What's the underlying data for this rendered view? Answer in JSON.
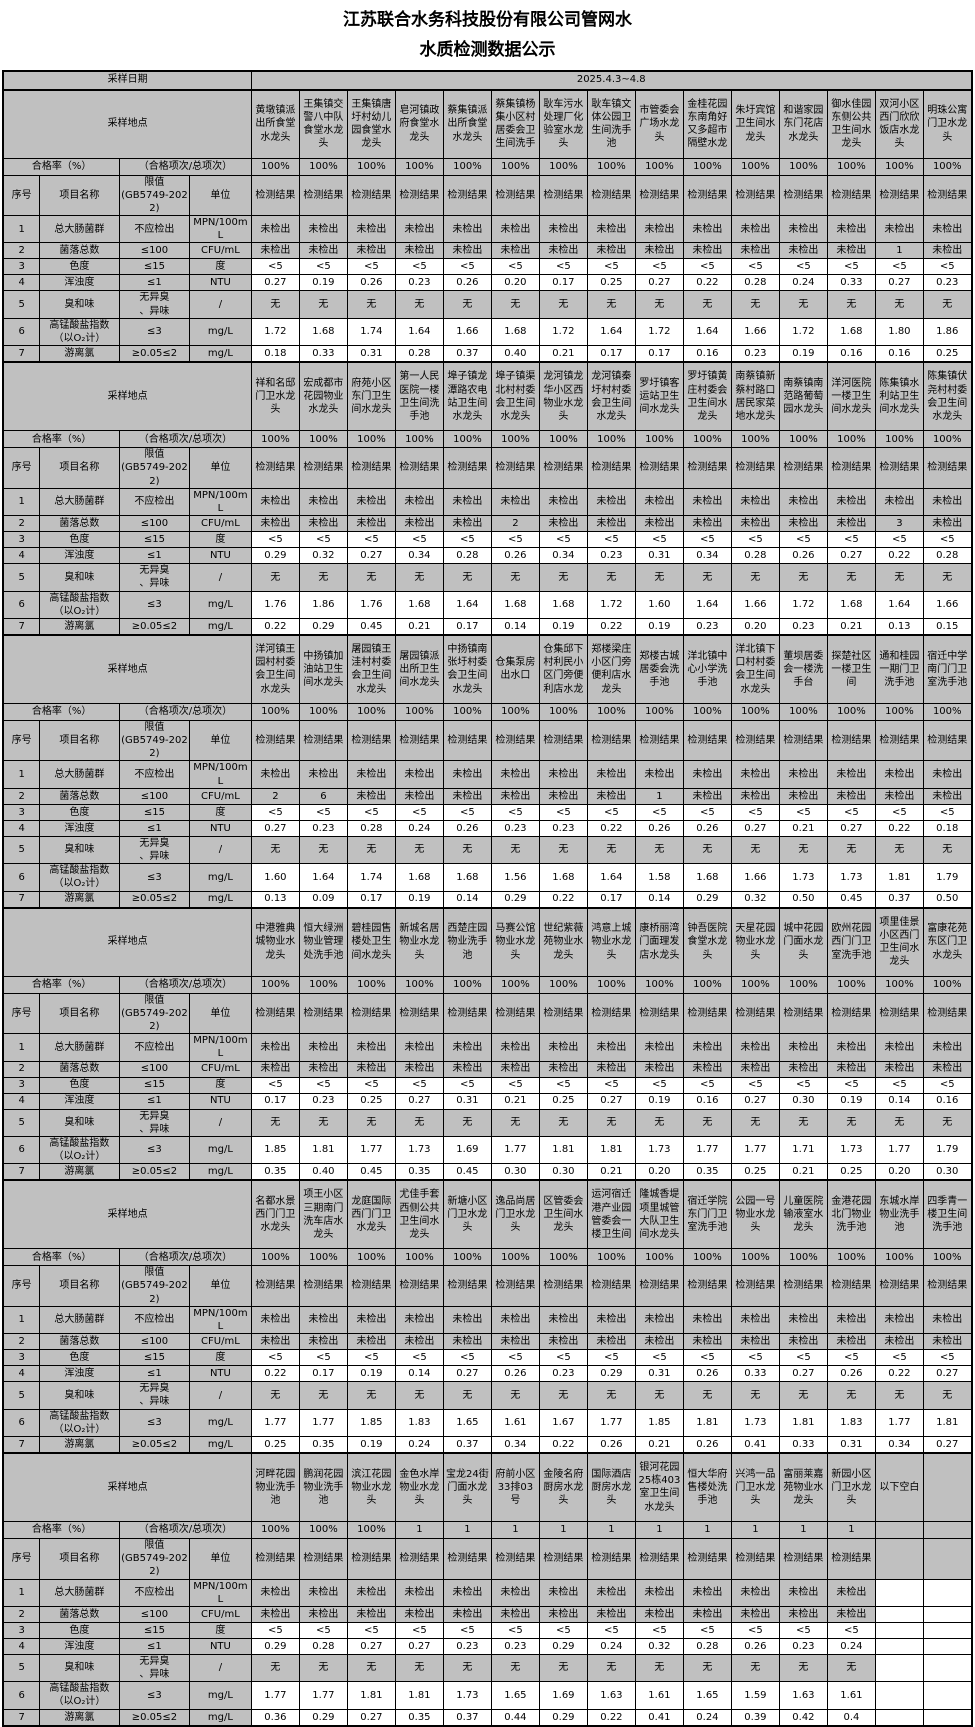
{
  "title": {
    "line1": "江苏联合水务科技股份有限公司管网水",
    "line2": "水质检测数据公示"
  },
  "labels": {
    "date_label": "采样日期",
    "date_value": "2025.4.3~4.8",
    "location_label": "采样地点",
    "rate_label": "合格率（%）",
    "rate_note": "（合格项次/总项次）",
    "col_no": "序号",
    "col_item": "项目名称",
    "col_limit": "限值\n(GB5749-2022)",
    "col_unit": "单位",
    "result_label": "检测结果"
  },
  "items": [
    {
      "no": "1",
      "name": "总大肠菌群",
      "limit": "不应检出",
      "unit": "MPN/100mL",
      "bg": "g"
    },
    {
      "no": "2",
      "name": "菌落总数",
      "limit": "≤100",
      "unit": "CFU/mL",
      "bg": "g"
    },
    {
      "no": "3",
      "name": "色度",
      "limit": "≤15",
      "unit": "度",
      "bg": "w"
    },
    {
      "no": "4",
      "name": "浑浊度",
      "limit": "≤1",
      "unit": "NTU",
      "bg": "w"
    },
    {
      "no": "5",
      "name": "臭和味",
      "limit": "无异臭\n、异味",
      "unit": "/",
      "bg": "g"
    },
    {
      "no": "6",
      "name": "高锰酸盐指数\n（以O₂计）",
      "limit": "≤3",
      "unit": "mg/L",
      "bg": "w"
    },
    {
      "no": "7",
      "name": "游离氯",
      "limit": "≥0.05≤2",
      "unit": "mg/L",
      "bg": "w"
    }
  ],
  "blocks": [
    {
      "locations": [
        "黄墩镇派出所食堂水龙头",
        "王集镇交警八中队食堂水龙头",
        "王集镇唐圩村幼儿园食堂水龙头",
        "皂河镇政府食堂水龙头",
        "蔡集镇派出所食堂水龙头",
        "蔡集镇杨集小区村居委会卫生间洗手",
        "耿车污水处理厂化验室水龙头",
        "耿车镇文体公园卫生间洗手池",
        "市管委会广场水龙头",
        "金桂花园东南角好又多超市隔壁水龙",
        "朱圩宾馆卫生间水龙头",
        "和谐家园东门花店水龙头",
        "御水佳园东侧公共卫生间水龙头",
        "双河小区西门欣欣饭店水龙头",
        "明珠公寓门卫水龙头"
      ],
      "pass_rates": [
        "100%",
        "100%",
        "100%",
        "100%",
        "100%",
        "100%",
        "100%",
        "100%",
        "100%",
        "100%",
        "100%",
        "100%",
        "100%",
        "100%",
        "100%"
      ],
      "result_headers": [
        "检测结果",
        "检测结果",
        "检测结果",
        "检测结果",
        "检测结果",
        "检测结果",
        "检测结果",
        "检测结果",
        "检测结果",
        "检测结果",
        "检测结果",
        "检测结果",
        "检测结果",
        "检测结果",
        "检测结果"
      ],
      "rows": [
        [
          "未检出",
          "未检出",
          "未检出",
          "未检出",
          "未检出",
          "未检出",
          "未检出",
          "未检出",
          "未检出",
          "未检出",
          "未检出",
          "未检出",
          "未检出",
          "未检出",
          "未检出"
        ],
        [
          "未检出",
          "未检出",
          "未检出",
          "未检出",
          "未检出",
          "未检出",
          "未检出",
          "未检出",
          "未检出",
          "未检出",
          "未检出",
          "未检出",
          "未检出",
          "1",
          "未检出"
        ],
        [
          "<5",
          "<5",
          "<5",
          "<5",
          "<5",
          "<5",
          "<5",
          "<5",
          "<5",
          "<5",
          "<5",
          "<5",
          "<5",
          "<5",
          "<5"
        ],
        [
          "0.27",
          "0.19",
          "0.26",
          "0.23",
          "0.26",
          "0.20",
          "0.17",
          "0.25",
          "0.27",
          "0.22",
          "0.28",
          "0.24",
          "0.33",
          "0.27",
          "0.23"
        ],
        [
          "无",
          "无",
          "无",
          "无",
          "无",
          "无",
          "无",
          "无",
          "无",
          "无",
          "无",
          "无",
          "无",
          "无",
          "无"
        ],
        [
          "1.72",
          "1.68",
          "1.74",
          "1.64",
          "1.66",
          "1.68",
          "1.72",
          "1.64",
          "1.72",
          "1.64",
          "1.66",
          "1.72",
          "1.68",
          "1.80",
          "1.86"
        ],
        [
          "0.18",
          "0.33",
          "0.31",
          "0.28",
          "0.37",
          "0.40",
          "0.21",
          "0.17",
          "0.17",
          "0.16",
          "0.23",
          "0.19",
          "0.16",
          "0.16",
          "0.25"
        ]
      ]
    },
    {
      "locations": [
        "祥和名邸门卫水龙头",
        "宏成都市花园物业水龙头",
        "府苑小区东门卫生间水龙头",
        "第一人民医院一楼卫生间洗手池",
        "埠子镇龙潭路农电站卫生间水龙头",
        "埠子镇渠北村村委会卫生间水龙头",
        "龙河镇龙华小区西物业水龙头",
        "龙河镇秦圩村村委会卫生间水龙头",
        "罗圩镇客运站卫生间水龙头",
        "罗圩镇黄庄村委会卫生间水龙头",
        "南蔡镇新蔡村路口居民家菜地水龙头",
        "南蔡镇南范路葡萄园水龙头",
        "洋河医院一楼卫生间水龙头",
        "陈集镇水利站卫生间水龙头",
        "陈集镇伏尧村村委会卫生间水龙头"
      ],
      "pass_rates": [
        "100%",
        "100%",
        "100%",
        "100%",
        "100%",
        "100%",
        "100%",
        "100%",
        "100%",
        "100%",
        "100%",
        "100%",
        "100%",
        "100%",
        "100%"
      ],
      "result_headers": [
        "检测结果",
        "检测结果",
        "检测结果",
        "检测结果",
        "检测结果",
        "检测结果",
        "检测结果",
        "检测结果",
        "检测结果",
        "检测结果",
        "检测结果",
        "检测结果",
        "检测结果",
        "检测结果",
        "检测结果"
      ],
      "rows": [
        [
          "未检出",
          "未检出",
          "未检出",
          "未检出",
          "未检出",
          "未检出",
          "未检出",
          "未检出",
          "未检出",
          "未检出",
          "未检出",
          "未检出",
          "未检出",
          "未检出",
          "未检出"
        ],
        [
          "未检出",
          "未检出",
          "未检出",
          "未检出",
          "未检出",
          "2",
          "未检出",
          "未检出",
          "未检出",
          "未检出",
          "未检出",
          "未检出",
          "未检出",
          "3",
          "未检出"
        ],
        [
          "<5",
          "<5",
          "<5",
          "<5",
          "<5",
          "<5",
          "<5",
          "<5",
          "<5",
          "<5",
          "<5",
          "<5",
          "<5",
          "<5",
          "<5"
        ],
        [
          "0.29",
          "0.32",
          "0.27",
          "0.34",
          "0.28",
          "0.26",
          "0.34",
          "0.23",
          "0.31",
          "0.34",
          "0.28",
          "0.26",
          "0.27",
          "0.22",
          "0.28"
        ],
        [
          "无",
          "无",
          "无",
          "无",
          "无",
          "无",
          "无",
          "无",
          "无",
          "无",
          "无",
          "无",
          "无",
          "无",
          "无"
        ],
        [
          "1.76",
          "1.86",
          "1.76",
          "1.68",
          "1.64",
          "1.68",
          "1.68",
          "1.72",
          "1.60",
          "1.64",
          "1.66",
          "1.72",
          "1.68",
          "1.64",
          "1.66"
        ],
        [
          "0.22",
          "0.29",
          "0.45",
          "0.21",
          "0.17",
          "0.14",
          "0.19",
          "0.22",
          "0.19",
          "0.23",
          "0.20",
          "0.23",
          "0.21",
          "0.13",
          "0.15"
        ]
      ]
    },
    {
      "locations": [
        "洋河镇王园村村委会卫生间水龙头",
        "中扬镇加油站卫生间水龙头",
        "屠园镇王洼村村委会卫生间水龙头",
        "屠园镇派出所卫生间水龙头",
        "中扬镇南张圩村委会卫生间水龙头",
        "仓集泵房出水口",
        "仓集邱下村利民小区门旁便利店水龙",
        "郑楼梁庄小区门旁便利店水龙头",
        "郑楼古城居委会洗手池",
        "洋北镇中心小学洗手池",
        "洋北镇下口村村委会卫生间水龙头",
        "董坝居委会一楼洗手台",
        "探楚社区一楼卫生间",
        "通和桂园一期门卫洗手池",
        "宿迁中学南门门卫室洗手池"
      ],
      "pass_rates": [
        "100%",
        "100%",
        "100%",
        "100%",
        "100%",
        "100%",
        "100%",
        "100%",
        "100%",
        "100%",
        "100%",
        "100%",
        "100%",
        "100%",
        "100%"
      ],
      "result_headers": [
        "检测结果",
        "检测结果",
        "检测结果",
        "检测结果",
        "检测结果",
        "检测结果",
        "检测结果",
        "检测结果",
        "检测结果",
        "检测结果",
        "检测结果",
        "检测结果",
        "检测结果",
        "检测结果",
        "检测结果"
      ],
      "rows": [
        [
          "未检出",
          "未检出",
          "未检出",
          "未检出",
          "未检出",
          "未检出",
          "未检出",
          "未检出",
          "未检出",
          "未检出",
          "未检出",
          "未检出",
          "未检出",
          "未检出",
          "未检出"
        ],
        [
          "2",
          "6",
          "未检出",
          "未检出",
          "未检出",
          "未检出",
          "未检出",
          "未检出",
          "1",
          "未检出",
          "未检出",
          "未检出",
          "未检出",
          "未检出",
          "未检出"
        ],
        [
          "<5",
          "<5",
          "<5",
          "<5",
          "<5",
          "<5",
          "<5",
          "<5",
          "<5",
          "<5",
          "<5",
          "<5",
          "<5",
          "<5",
          "<5"
        ],
        [
          "0.27",
          "0.23",
          "0.28",
          "0.24",
          "0.26",
          "0.23",
          "0.23",
          "0.22",
          "0.26",
          "0.26",
          "0.27",
          "0.21",
          "0.27",
          "0.22",
          "0.18"
        ],
        [
          "无",
          "无",
          "无",
          "无",
          "无",
          "无",
          "无",
          "无",
          "无",
          "无",
          "无",
          "无",
          "无",
          "无",
          "无"
        ],
        [
          "1.60",
          "1.64",
          "1.74",
          "1.68",
          "1.68",
          "1.56",
          "1.68",
          "1.64",
          "1.58",
          "1.68",
          "1.66",
          "1.73",
          "1.73",
          "1.81",
          "1.79"
        ],
        [
          "0.13",
          "0.09",
          "0.17",
          "0.19",
          "0.14",
          "0.29",
          "0.22",
          "0.17",
          "0.14",
          "0.29",
          "0.32",
          "0.50",
          "0.45",
          "0.37",
          "0.50"
        ]
      ]
    },
    {
      "locations": [
        "中港雅典城物业水龙头",
        "恒大绿洲物业管理处洗手池",
        "碧桂园售楼处卫生间水龙头",
        "新城名居物业水龙头",
        "西楚庄园物业洗手池",
        "马赛公馆物业水龙头",
        "世纪紫薇苑物业水龙头",
        "鸿意上城物业水龙头",
        "康桥丽湾门面理发店水龙头",
        "钟吾医院食堂水龙头",
        "天星花园物业水龙头",
        "城中花园门面水龙头",
        "欧州花园西门门卫室洗手池",
        "项里佳景小区西门卫生间水龙头",
        "富康花苑东区门卫水龙头"
      ],
      "pass_rates": [
        "100%",
        "100%",
        "100%",
        "100%",
        "100%",
        "100%",
        "100%",
        "100%",
        "100%",
        "100%",
        "100%",
        "100%",
        "100%",
        "100%",
        "100%"
      ],
      "result_headers": [
        "检测结果",
        "检测结果",
        "检测结果",
        "检测结果",
        "检测结果",
        "检测结果",
        "检测结果",
        "检测结果",
        "检测结果",
        "检测结果",
        "检测结果",
        "检测结果",
        "检测结果",
        "检测结果",
        "检测结果"
      ],
      "rows": [
        [
          "未检出",
          "未检出",
          "未检出",
          "未检出",
          "未检出",
          "未检出",
          "未检出",
          "未检出",
          "未检出",
          "未检出",
          "未检出",
          "未检出",
          "未检出",
          "未检出",
          "未检出"
        ],
        [
          "未检出",
          "未检出",
          "未检出",
          "未检出",
          "未检出",
          "未检出",
          "未检出",
          "未检出",
          "未检出",
          "未检出",
          "未检出",
          "未检出",
          "未检出",
          "未检出",
          "未检出"
        ],
        [
          "<5",
          "<5",
          "<5",
          "<5",
          "<5",
          "<5",
          "<5",
          "<5",
          "<5",
          "<5",
          "<5",
          "<5",
          "<5",
          "<5",
          "<5"
        ],
        [
          "0.17",
          "0.23",
          "0.25",
          "0.27",
          "0.31",
          "0.21",
          "0.25",
          "0.27",
          "0.19",
          "0.16",
          "0.27",
          "0.30",
          "0.19",
          "0.14",
          "0.16"
        ],
        [
          "无",
          "无",
          "无",
          "无",
          "无",
          "无",
          "无",
          "无",
          "无",
          "无",
          "无",
          "无",
          "无",
          "无",
          "无"
        ],
        [
          "1.85",
          "1.81",
          "1.77",
          "1.73",
          "1.69",
          "1.77",
          "1.81",
          "1.81",
          "1.73",
          "1.77",
          "1.77",
          "1.71",
          "1.73",
          "1.77",
          "1.79"
        ],
        [
          "0.35",
          "0.40",
          "0.45",
          "0.35",
          "0.45",
          "0.30",
          "0.30",
          "0.21",
          "0.20",
          "0.35",
          "0.25",
          "0.21",
          "0.25",
          "0.20",
          "0.30"
        ]
      ]
    },
    {
      "locations": [
        "名都水景西门门卫水龙头",
        "项王小区三期南门洗车店水龙头",
        "龙庭国际西门门卫水龙头",
        "尤佳手套西侧公共卫生间水龙头",
        "新塘小区门卫水龙头",
        "逸品尚居门卫水龙头",
        "区管委会卫生间水龙头",
        "运河宿迁港产业园管委会一楼卫生间",
        "隆城香堤项里城管大队卫生间水龙头",
        "宿迁学院东门门卫室洗手池",
        "公园一号物业水龙头",
        "儿童医院输液室水龙头",
        "金港花园北门物业洗手池",
        "东城水岸物业洗手池",
        "四季青一楼卫生间洗手池"
      ],
      "pass_rates": [
        "100%",
        "100%",
        "100%",
        "100%",
        "100%",
        "100%",
        "100%",
        "100%",
        "100%",
        "100%",
        "100%",
        "100%",
        "100%",
        "100%",
        "100%"
      ],
      "result_headers": [
        "检测结果",
        "检测结果",
        "检测结果",
        "检测结果",
        "检测结果",
        "检测结果",
        "检测结果",
        "检测结果",
        "检测结果",
        "检测结果",
        "检测结果",
        "检测结果",
        "检测结果",
        "检测结果",
        "检测结果"
      ],
      "rows": [
        [
          "未检出",
          "未检出",
          "未检出",
          "未检出",
          "未检出",
          "未检出",
          "未检出",
          "未检出",
          "未检出",
          "未检出",
          "未检出",
          "未检出",
          "未检出",
          "未检出",
          "未检出"
        ],
        [
          "未检出",
          "未检出",
          "未检出",
          "未检出",
          "未检出",
          "未检出",
          "未检出",
          "未检出",
          "未检出",
          "未检出",
          "未检出",
          "未检出",
          "未检出",
          "未检出",
          "未检出"
        ],
        [
          "<5",
          "<5",
          "<5",
          "<5",
          "<5",
          "<5",
          "<5",
          "<5",
          "<5",
          "<5",
          "<5",
          "<5",
          "<5",
          "<5",
          "<5"
        ],
        [
          "0.22",
          "0.17",
          "0.19",
          "0.14",
          "0.27",
          "0.26",
          "0.23",
          "0.29",
          "0.31",
          "0.26",
          "0.33",
          "0.27",
          "0.26",
          "0.22",
          "0.27"
        ],
        [
          "无",
          "无",
          "无",
          "无",
          "无",
          "无",
          "无",
          "无",
          "无",
          "无",
          "无",
          "无",
          "无",
          "无",
          "无"
        ],
        [
          "1.77",
          "1.77",
          "1.85",
          "1.83",
          "1.65",
          "1.61",
          "1.67",
          "1.77",
          "1.85",
          "1.81",
          "1.73",
          "1.81",
          "1.83",
          "1.77",
          "1.81"
        ],
        [
          "0.25",
          "0.35",
          "0.19",
          "0.24",
          "0.37",
          "0.34",
          "0.22",
          "0.26",
          "0.21",
          "0.26",
          "0.41",
          "0.33",
          "0.31",
          "0.34",
          "0.27"
        ]
      ]
    },
    {
      "locations": [
        "河畔花园物业洗手池",
        "鹏润花园物业洗手池",
        "滨江花园物业水龙头",
        "金色水岸物业水龙头",
        "宝龙24街门面水龙头",
        "府前小区33排03号",
        "金陵名府厨房水龙头",
        "国际酒店厨房水龙头",
        "银河花园25栋403室卫生间水龙头",
        "恒大华府售楼处洗手池",
        "兴鸿一品门卫水龙头",
        "富丽莱嘉苑物业水龙头",
        "新园小区门卫水龙头",
        "以下空白",
        ""
      ],
      "pass_rates": [
        "100%",
        "100%",
        "100%",
        "1",
        "1",
        "1",
        "1",
        "1",
        "1",
        "1",
        "1",
        "1",
        "1",
        "",
        ""
      ],
      "result_headers": [
        "检测结果",
        "检测结果",
        "检测结果",
        "检测结果",
        "检测结果",
        "检测结果",
        "检测结果",
        "检测结果",
        "检测结果",
        "检测结果",
        "检测结果",
        "检测结果",
        "检测结果",
        "",
        ""
      ],
      "rows": [
        [
          "未检出",
          "未检出",
          "未检出",
          "未检出",
          "未检出",
          "未检出",
          "未检出",
          "未检出",
          "未检出",
          "未检出",
          "未检出",
          "未检出",
          "未检出",
          "",
          ""
        ],
        [
          "未检出",
          "未检出",
          "未检出",
          "未检出",
          "未检出",
          "未检出",
          "未检出",
          "未检出",
          "未检出",
          "未检出",
          "未检出",
          "未检出",
          "未检出",
          "",
          ""
        ],
        [
          "<5",
          "<5",
          "<5",
          "<5",
          "<5",
          "<5",
          "<5",
          "<5",
          "<5",
          "<5",
          "<5",
          "<5",
          "<5",
          "",
          ""
        ],
        [
          "0.29",
          "0.28",
          "0.27",
          "0.27",
          "0.23",
          "0.23",
          "0.29",
          "0.24",
          "0.32",
          "0.28",
          "0.26",
          "0.23",
          "0.24",
          "",
          ""
        ],
        [
          "无",
          "无",
          "无",
          "无",
          "无",
          "无",
          "无",
          "无",
          "无",
          "无",
          "无",
          "无",
          "无",
          "",
          ""
        ],
        [
          "1.77",
          "1.77",
          "1.81",
          "1.81",
          "1.73",
          "1.65",
          "1.69",
          "1.63",
          "1.61",
          "1.65",
          "1.59",
          "1.63",
          "1.61",
          "",
          ""
        ],
        [
          "0.36",
          "0.29",
          "0.27",
          "0.35",
          "0.37",
          "0.44",
          "0.29",
          "0.22",
          "0.41",
          "0.24",
          "0.39",
          "0.42",
          "0.4",
          "",
          ""
        ]
      ]
    }
  ]
}
